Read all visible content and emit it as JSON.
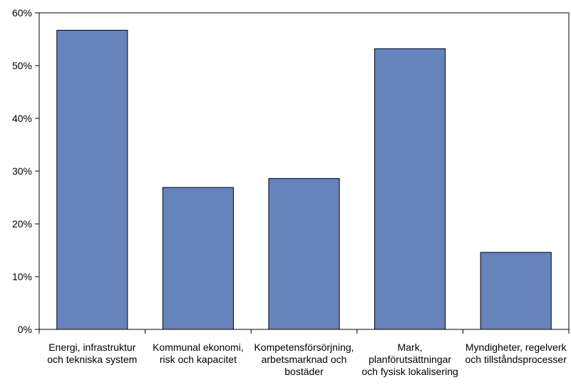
{
  "chart_data": {
    "type": "bar",
    "title": "",
    "xlabel": "",
    "ylabel": "",
    "ylim": [
      0,
      60
    ],
    "yticks": [
      0,
      10,
      20,
      30,
      40,
      50,
      60
    ],
    "ytick_labels": [
      "0%",
      "10%",
      "20%",
      "30%",
      "40%",
      "50%",
      "60%"
    ],
    "grid": false,
    "legend": "none",
    "bar_color": "#6783bb",
    "categories": [
      [
        "Energi, infrastruktur",
        "och tekniska system"
      ],
      [
        "Kommunal ekonomi,",
        "risk och kapacitet"
      ],
      [
        "Kompetensförsörjning,",
        "arbetsmarknad och",
        "bostäder"
      ],
      [
        "Mark,",
        "planförutsättningar",
        "och fysisk lokalisering"
      ],
      [
        "Myndigheter, regelverk",
        "och tillståndsprocesser"
      ]
    ],
    "values": [
      56.7,
      26.9,
      28.6,
      53.2,
      14.6
    ]
  }
}
